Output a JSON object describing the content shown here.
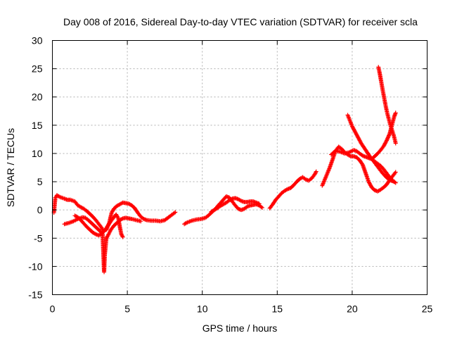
{
  "chart_data": {
    "type": "scatter",
    "title": "Day 008 of 2016, Sidereal Day-to-day VTEC variation (SDTVAR) for receiver scla",
    "xlabel": "GPS time / hours",
    "ylabel": "SDTVAR / TECUs",
    "xlim": [
      0,
      25
    ],
    "ylim": [
      -15,
      30
    ],
    "xticks": [
      0,
      5,
      10,
      15,
      20,
      25
    ],
    "yticks": [
      -15,
      -10,
      -5,
      0,
      5,
      10,
      15,
      20,
      25,
      30
    ],
    "grid": true,
    "marker": "plus",
    "marker_color": "#ff0000",
    "series": [
      {
        "points": [
          [
            0.1,
            -0.5
          ],
          [
            0.2,
            2.2
          ],
          [
            0.3,
            2.6
          ],
          [
            0.5,
            2.3
          ],
          [
            0.8,
            2.0
          ],
          [
            1.0,
            1.8
          ],
          [
            1.2,
            1.8
          ],
          [
            1.5,
            1.5
          ],
          [
            1.7,
            0.8
          ],
          [
            1.9,
            0.5
          ],
          [
            2.1,
            0.2
          ],
          [
            2.3,
            -0.2
          ],
          [
            2.5,
            -0.7
          ],
          [
            2.7,
            -1.2
          ],
          [
            2.9,
            -1.8
          ],
          [
            3.1,
            -2.5
          ],
          [
            3.3,
            -3.2
          ],
          [
            3.4,
            -3.8
          ],
          [
            3.6,
            -3.5
          ],
          [
            3.8,
            -2.2
          ],
          [
            3.95,
            -0.5
          ],
          [
            4.1,
            0.2
          ],
          [
            4.3,
            0.7
          ],
          [
            4.5,
            1.0
          ],
          [
            4.7,
            1.3
          ],
          [
            4.9,
            1.2
          ],
          [
            5.1,
            1.1
          ],
          [
            5.3,
            0.8
          ],
          [
            5.5,
            0.3
          ],
          [
            5.7,
            -0.5
          ],
          [
            5.9,
            -1.2
          ],
          [
            6.1,
            -1.6
          ],
          [
            6.3,
            -1.8
          ],
          [
            6.6,
            -1.9
          ],
          [
            6.9,
            -1.9
          ],
          [
            7.2,
            -2.0
          ],
          [
            7.5,
            -1.8
          ],
          [
            7.8,
            -1.2
          ],
          [
            8.0,
            -0.8
          ],
          [
            8.2,
            -0.4
          ]
        ]
      },
      {
        "points": [
          [
            0.8,
            -2.5
          ],
          [
            1.1,
            -2.3
          ],
          [
            1.4,
            -2.0
          ],
          [
            1.7,
            -1.6
          ],
          [
            2.0,
            -1.3
          ],
          [
            2.2,
            -1.4
          ],
          [
            2.4,
            -1.8
          ],
          [
            2.6,
            -2.3
          ],
          [
            2.8,
            -2.8
          ],
          [
            3.0,
            -3.3
          ],
          [
            3.2,
            -3.8
          ],
          [
            3.35,
            -4.3
          ],
          [
            3.45,
            -11.0
          ],
          [
            3.5,
            -7.8
          ],
          [
            3.55,
            -6.5
          ],
          [
            3.6,
            -5.0
          ],
          [
            3.75,
            -4.3
          ],
          [
            3.9,
            -3.5
          ],
          [
            4.1,
            -2.8
          ],
          [
            4.3,
            -2.3
          ],
          [
            4.5,
            -1.8
          ],
          [
            4.7,
            -1.5
          ],
          [
            4.9,
            -1.4
          ],
          [
            5.1,
            -1.5
          ],
          [
            5.3,
            -1.6
          ],
          [
            5.6,
            -1.8
          ],
          [
            5.9,
            -2.0
          ]
        ]
      },
      {
        "points": [
          [
            1.5,
            -1.0
          ],
          [
            1.7,
            -1.3
          ],
          [
            1.9,
            -1.8
          ],
          [
            2.1,
            -2.4
          ],
          [
            2.3,
            -3.0
          ],
          [
            2.5,
            -3.5
          ],
          [
            2.7,
            -4.0
          ],
          [
            2.9,
            -4.3
          ],
          [
            3.1,
            -4.5
          ],
          [
            3.3,
            -4.2
          ],
          [
            3.5,
            -3.6
          ],
          [
            3.7,
            -2.8
          ],
          [
            3.9,
            -2.0
          ],
          [
            4.1,
            -1.3
          ],
          [
            4.25,
            -0.8
          ],
          [
            4.4,
            -1.5
          ],
          [
            4.5,
            -3.0
          ],
          [
            4.6,
            -4.3
          ],
          [
            4.7,
            -4.8
          ]
        ]
      },
      {
        "points": [
          [
            8.8,
            -2.5
          ],
          [
            9.0,
            -2.2
          ],
          [
            9.3,
            -1.9
          ],
          [
            9.6,
            -1.7
          ],
          [
            9.9,
            -1.6
          ],
          [
            10.2,
            -1.4
          ],
          [
            10.4,
            -1.0
          ],
          [
            10.6,
            -0.5
          ],
          [
            10.8,
            0.0
          ],
          [
            11.0,
            0.6
          ],
          [
            11.2,
            1.2
          ],
          [
            11.4,
            1.8
          ],
          [
            11.6,
            2.4
          ],
          [
            11.8,
            2.2
          ],
          [
            12.0,
            1.5
          ],
          [
            12.2,
            0.8
          ],
          [
            12.4,
            0.2
          ],
          [
            12.6,
            0.0
          ],
          [
            12.8,
            0.2
          ],
          [
            13.0,
            0.6
          ],
          [
            13.2,
            0.8
          ],
          [
            13.4,
            0.9
          ],
          [
            13.6,
            1.0
          ],
          [
            13.8,
            0.8
          ],
          [
            14.0,
            0.4
          ]
        ]
      },
      {
        "points": [
          [
            10.6,
            -0.3
          ],
          [
            10.8,
            0.0
          ],
          [
            11.0,
            0.3
          ],
          [
            11.2,
            0.7
          ],
          [
            11.4,
            1.0
          ],
          [
            11.6,
            1.3
          ],
          [
            11.8,
            1.7
          ],
          [
            12.0,
            2.0
          ],
          [
            12.2,
            2.1
          ],
          [
            12.4,
            1.9
          ],
          [
            12.6,
            1.6
          ],
          [
            12.8,
            1.4
          ],
          [
            13.0,
            1.4
          ],
          [
            13.2,
            1.5
          ],
          [
            13.4,
            1.5
          ],
          [
            13.6,
            1.3
          ],
          [
            13.8,
            1.1
          ]
        ]
      },
      {
        "points": [
          [
            14.5,
            0.3
          ],
          [
            14.7,
            1.0
          ],
          [
            14.9,
            1.8
          ],
          [
            15.1,
            2.4
          ],
          [
            15.3,
            3.0
          ],
          [
            15.5,
            3.4
          ],
          [
            15.7,
            3.7
          ],
          [
            15.9,
            3.9
          ],
          [
            16.1,
            4.4
          ],
          [
            16.3,
            5.0
          ],
          [
            16.5,
            5.5
          ],
          [
            16.7,
            5.8
          ],
          [
            16.9,
            5.4
          ],
          [
            17.1,
            5.2
          ],
          [
            17.3,
            5.6
          ],
          [
            17.5,
            6.3
          ],
          [
            17.6,
            6.8
          ]
        ]
      },
      {
        "points": [
          [
            18.0,
            4.3
          ],
          [
            18.3,
            6.2
          ],
          [
            18.5,
            7.5
          ],
          [
            18.7,
            9.0
          ],
          [
            18.9,
            10.5
          ],
          [
            19.1,
            11.2
          ],
          [
            19.3,
            10.8
          ],
          [
            19.5,
            10.2
          ],
          [
            19.7,
            9.8
          ],
          [
            19.9,
            9.5
          ],
          [
            20.1,
            9.5
          ],
          [
            20.3,
            9.3
          ],
          [
            20.5,
            8.8
          ],
          [
            20.7,
            8.0
          ],
          [
            20.9,
            6.5
          ],
          [
            21.1,
            5.0
          ],
          [
            21.3,
            4.0
          ],
          [
            21.5,
            3.5
          ],
          [
            21.7,
            3.3
          ],
          [
            21.9,
            3.6
          ],
          [
            22.1,
            4.0
          ],
          [
            22.3,
            4.5
          ],
          [
            22.5,
            5.3
          ],
          [
            22.7,
            6.0
          ],
          [
            22.9,
            6.7
          ]
        ]
      },
      {
        "points": [
          [
            18.6,
            9.8
          ],
          [
            18.9,
            10.5
          ],
          [
            19.2,
            10.3
          ],
          [
            19.5,
            10.0
          ],
          [
            19.8,
            10.2
          ],
          [
            20.1,
            10.6
          ],
          [
            20.3,
            10.4
          ],
          [
            20.5,
            10.0
          ],
          [
            20.7,
            9.6
          ],
          [
            20.9,
            9.4
          ],
          [
            21.1,
            9.2
          ],
          [
            21.3,
            9.0
          ],
          [
            21.5,
            8.6
          ],
          [
            21.7,
            8.2
          ],
          [
            21.9,
            7.8
          ],
          [
            22.1,
            7.2
          ],
          [
            22.3,
            6.5
          ],
          [
            22.5,
            5.8
          ],
          [
            22.7,
            5.2
          ],
          [
            22.9,
            4.8
          ]
        ]
      },
      {
        "points": [
          [
            19.7,
            16.8
          ],
          [
            19.85,
            15.8
          ],
          [
            20.0,
            14.8
          ],
          [
            20.2,
            13.8
          ],
          [
            20.4,
            12.8
          ],
          [
            20.6,
            11.8
          ],
          [
            20.8,
            11.0
          ],
          [
            21.0,
            10.2
          ],
          [
            21.2,
            9.4
          ],
          [
            21.4,
            8.7
          ],
          [
            21.6,
            8.0
          ],
          [
            21.8,
            7.3
          ],
          [
            22.0,
            6.6
          ],
          [
            22.2,
            6.0
          ],
          [
            22.4,
            5.5
          ],
          [
            22.6,
            5.2
          ],
          [
            22.8,
            5.0
          ]
        ]
      },
      {
        "points": [
          [
            21.3,
            9.0
          ],
          [
            21.5,
            9.5
          ],
          [
            21.7,
            10.0
          ],
          [
            21.9,
            10.6
          ],
          [
            22.1,
            11.3
          ],
          [
            22.3,
            12.3
          ],
          [
            22.5,
            13.5
          ],
          [
            22.65,
            15.0
          ],
          [
            22.8,
            16.5
          ],
          [
            22.9,
            17.2
          ]
        ]
      },
      {
        "points": [
          [
            21.75,
            25.3
          ],
          [
            21.85,
            24.0
          ],
          [
            21.95,
            22.5
          ],
          [
            22.05,
            21.0
          ],
          [
            22.15,
            19.6
          ],
          [
            22.25,
            18.2
          ],
          [
            22.35,
            17.0
          ],
          [
            22.45,
            16.0
          ],
          [
            22.55,
            15.0
          ],
          [
            22.65,
            14.2
          ],
          [
            22.75,
            13.4
          ],
          [
            22.85,
            12.4
          ],
          [
            22.9,
            11.8
          ]
        ]
      }
    ]
  }
}
